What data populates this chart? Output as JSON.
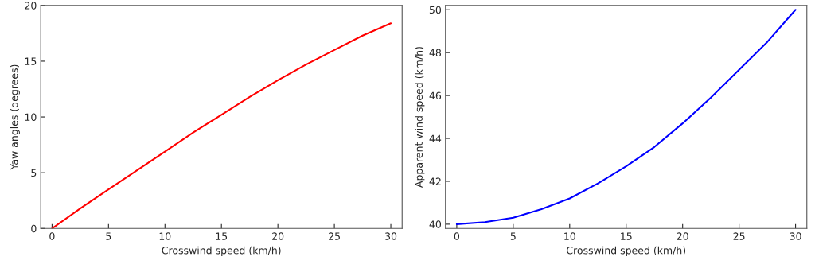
{
  "chart_data": [
    {
      "type": "line",
      "xlabel": "Crosswind speed (km/h)",
      "ylabel": "Yaw angles (degrees)",
      "x": [
        0,
        2.5,
        5,
        7.5,
        10,
        12.5,
        15,
        17.5,
        20,
        22.5,
        25,
        27.5,
        30
      ],
      "series": [
        {
          "color": "#ff0000",
          "values": [
            0,
            1.8,
            3.5,
            5.2,
            6.9,
            8.6,
            10.2,
            11.8,
            13.3,
            14.7,
            16.0,
            17.3,
            18.4
          ]
        }
      ],
      "xlim": [
        -1,
        31
      ],
      "ylim": [
        0,
        20
      ],
      "xticks": [
        0,
        5,
        10,
        15,
        20,
        25,
        30
      ],
      "yticks": [
        0,
        5,
        10,
        15,
        20
      ],
      "grid": false,
      "legend": false,
      "marker": "none",
      "line_style": "solid"
    },
    {
      "type": "line",
      "xlabel": "Crosswind speed (km/h)",
      "ylabel": "Apparent wind speed (km/h)",
      "x": [
        0,
        2.5,
        5,
        7.5,
        10,
        12.5,
        15,
        17.5,
        20,
        22.5,
        25,
        27.5,
        30
      ],
      "series": [
        {
          "color": "#0000ff",
          "values": [
            40,
            40.1,
            40.3,
            40.7,
            41.2,
            41.9,
            42.7,
            43.6,
            44.7,
            45.9,
            47.2,
            48.5,
            50
          ]
        }
      ],
      "xlim": [
        -1,
        31
      ],
      "ylim": [
        39.8,
        50.2
      ],
      "xticks": [
        0,
        5,
        10,
        15,
        20,
        25,
        30
      ],
      "yticks": [
        40,
        42,
        44,
        46,
        48,
        50
      ],
      "grid": false,
      "legend": false,
      "marker": "none",
      "line_style": "solid"
    }
  ]
}
